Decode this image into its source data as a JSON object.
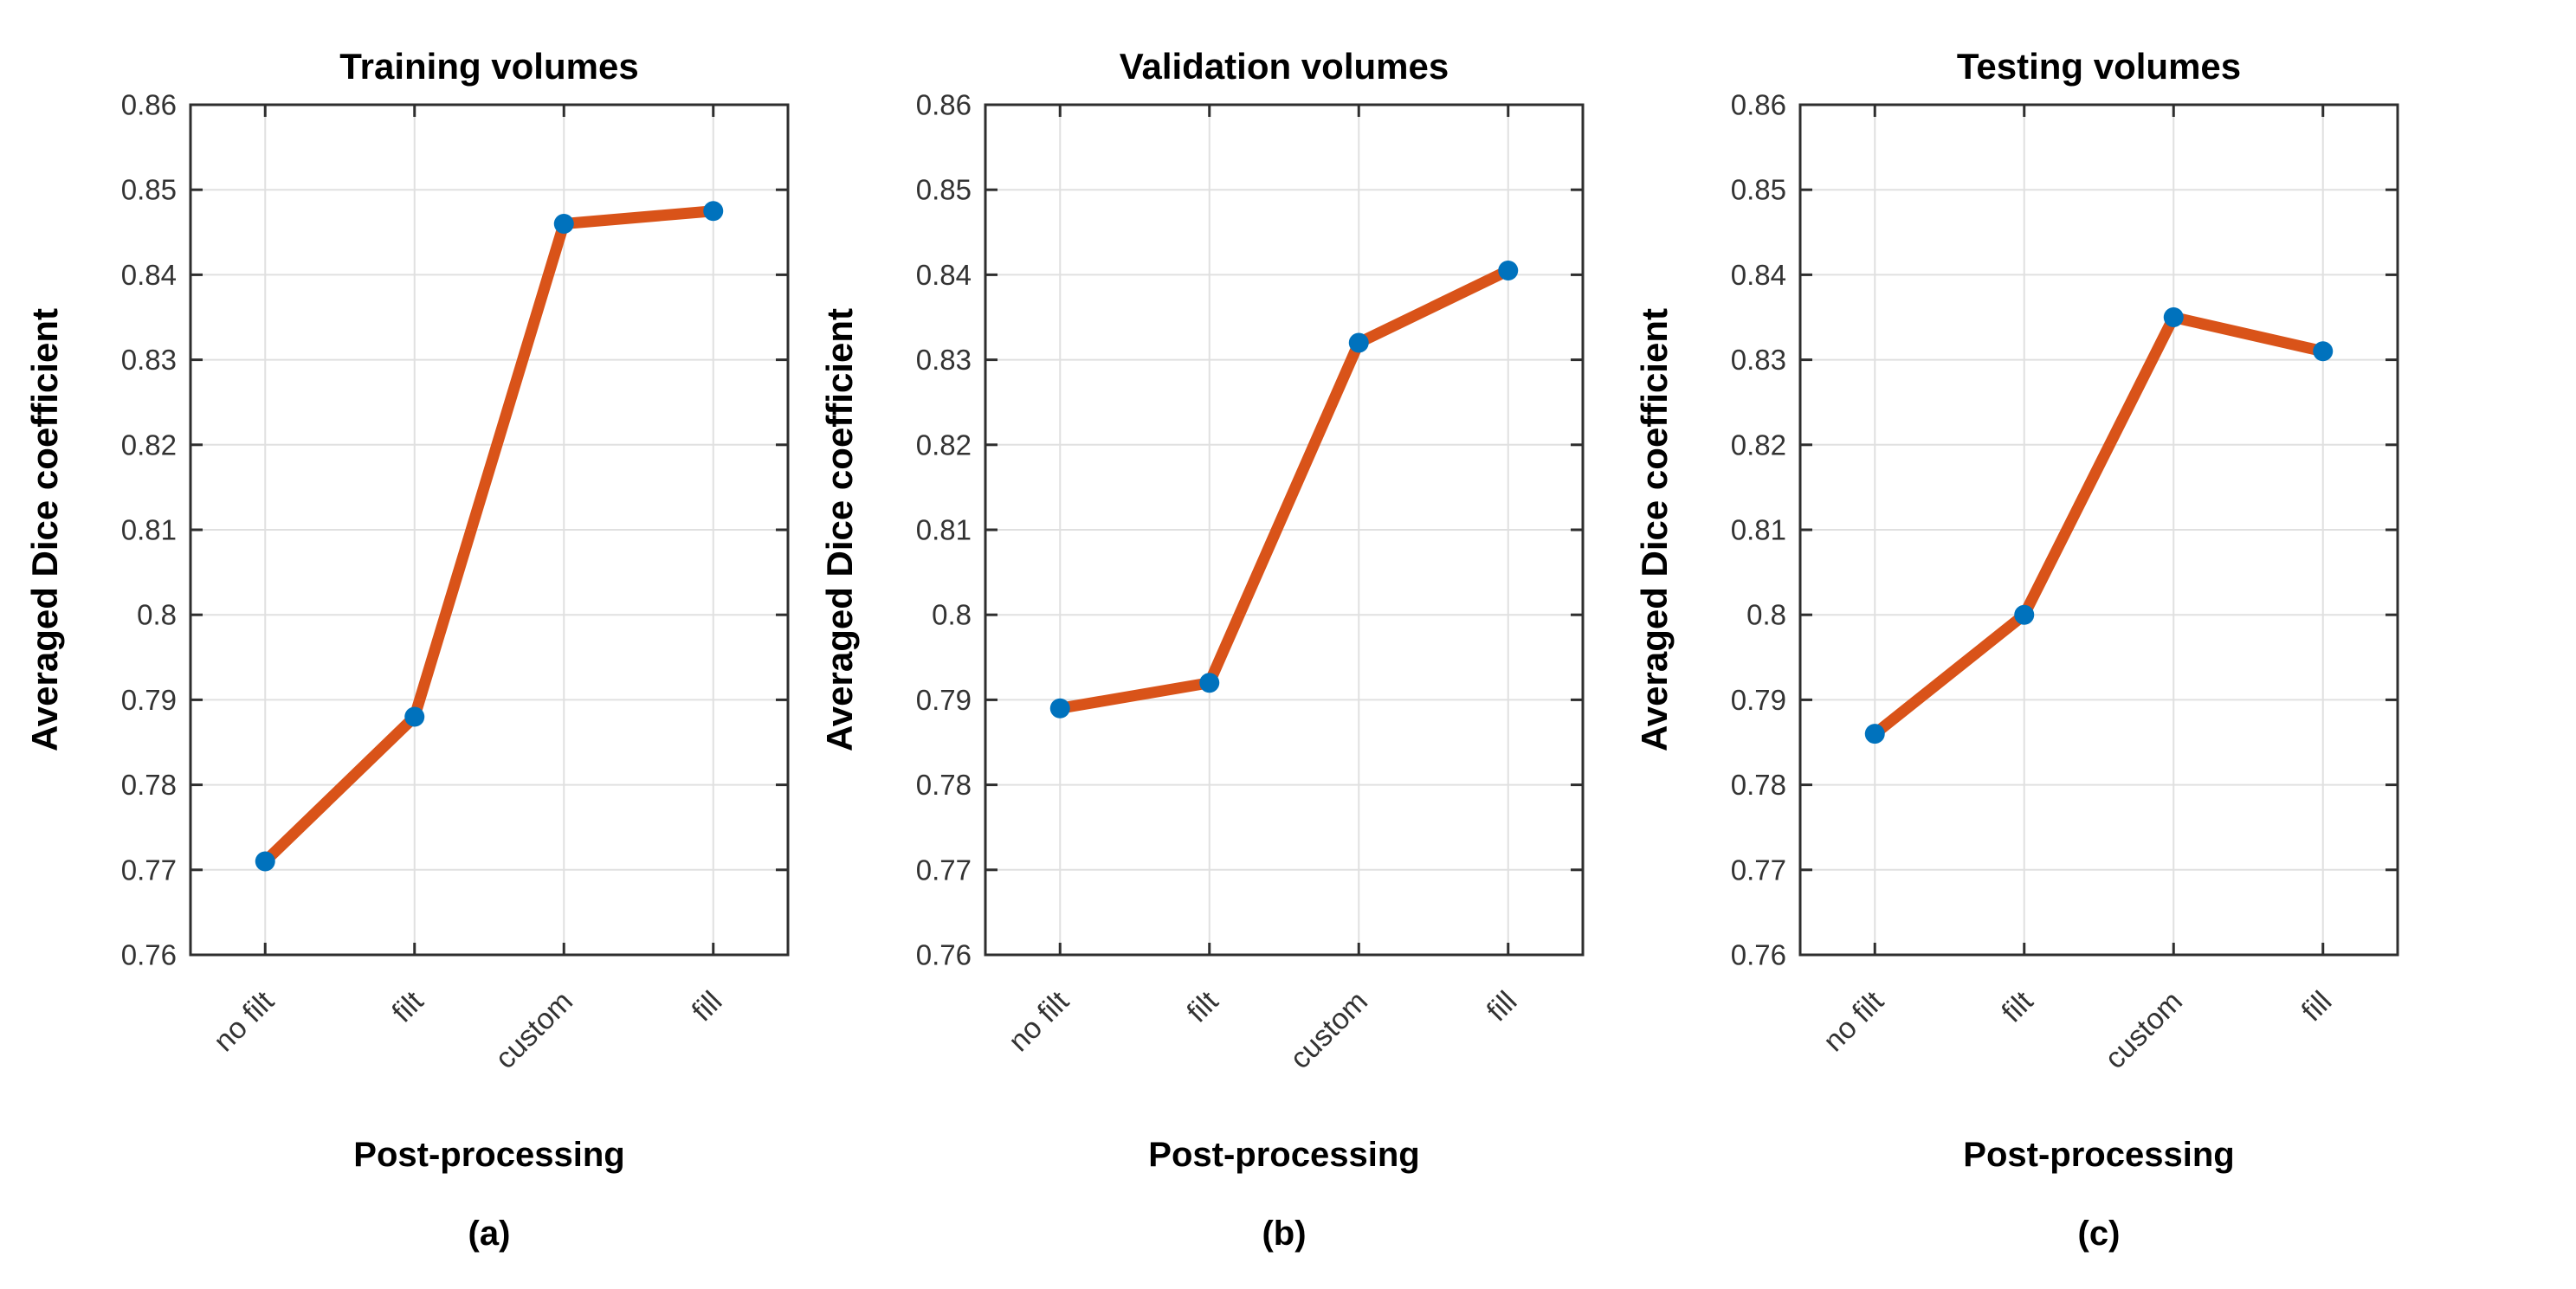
{
  "style": {
    "background": "#ffffff",
    "line_color": "#d95319",
    "marker_color": "#0072bd",
    "grid_color": "#e0e0e0",
    "axis_color": "#2e2e2e",
    "tick_label_color": "#333333",
    "text_color": "#000000"
  },
  "chart_data": [
    {
      "type": "line",
      "title": "Training volumes",
      "caption": "(a)",
      "xlabel": "Post-processing",
      "ylabel": "Averaged Dice coefficient",
      "categories": [
        "no filt",
        "filt",
        "custom",
        "fill"
      ],
      "values": [
        0.771,
        0.788,
        0.846,
        0.8475
      ],
      "ylim": [
        0.76,
        0.86
      ],
      "yticks": [
        0.76,
        0.77,
        0.78,
        0.79,
        0.8,
        0.81,
        0.82,
        0.83,
        0.84,
        0.85,
        0.86
      ],
      "ytick_labels": [
        "0.76",
        "0.77",
        "0.78",
        "0.79",
        "0.8",
        "0.81",
        "0.82",
        "0.83",
        "0.84",
        "0.85",
        "0.86"
      ],
      "grid": true,
      "legend": null,
      "xtick_rotation_deg": 45
    },
    {
      "type": "line",
      "title": "Validation volumes",
      "caption": "(b)",
      "xlabel": "Post-processing",
      "ylabel": "Averaged Dice coefficient",
      "categories": [
        "no filt",
        "filt",
        "custom",
        "fill"
      ],
      "values": [
        0.789,
        0.792,
        0.832,
        0.8405
      ],
      "ylim": [
        0.76,
        0.86
      ],
      "yticks": [
        0.76,
        0.77,
        0.78,
        0.79,
        0.8,
        0.81,
        0.82,
        0.83,
        0.84,
        0.85,
        0.86
      ],
      "ytick_labels": [
        "0.76",
        "0.77",
        "0.78",
        "0.79",
        "0.8",
        "0.81",
        "0.82",
        "0.83",
        "0.84",
        "0.85",
        "0.86"
      ],
      "grid": true,
      "legend": null,
      "xtick_rotation_deg": 45
    },
    {
      "type": "line",
      "title": "Testing volumes",
      "caption": "(c)",
      "xlabel": "Post-processing",
      "ylabel": "Averaged Dice coefficient",
      "categories": [
        "no filt",
        "filt",
        "custom",
        "fill"
      ],
      "values": [
        0.786,
        0.8,
        0.835,
        0.831
      ],
      "ylim": [
        0.76,
        0.86
      ],
      "yticks": [
        0.76,
        0.77,
        0.78,
        0.79,
        0.8,
        0.81,
        0.82,
        0.83,
        0.84,
        0.85,
        0.86
      ],
      "ytick_labels": [
        "0.76",
        "0.77",
        "0.78",
        "0.79",
        "0.8",
        "0.81",
        "0.82",
        "0.83",
        "0.84",
        "0.85",
        "0.86"
      ],
      "grid": true,
      "legend": null,
      "xtick_rotation_deg": 45
    }
  ]
}
